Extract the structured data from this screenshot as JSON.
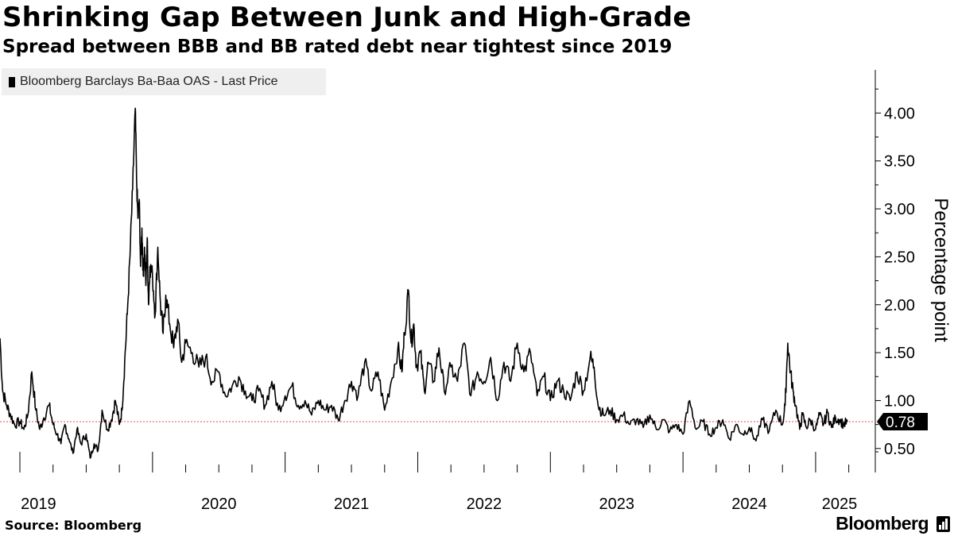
{
  "header": {
    "title": "Shrinking Gap Between Junk and High-Grade",
    "subtitle": "Spread between BBB and BB rated debt near tightest since 2019"
  },
  "legend": {
    "label": "Bloomberg Barclays Ba-Baa OAS - Last Price"
  },
  "footer": {
    "source": "Source: Bloomberg",
    "brand": "Bloomberg"
  },
  "colors": {
    "line": "#000000",
    "reference": "#e05050",
    "badge": "#000000",
    "legend_bg": "#efefef"
  },
  "chart_data": {
    "type": "line",
    "title": "Shrinking Gap Between Junk and High-Grade",
    "subtitle": "Spread between BBB and BB rated debt near tightest since 2019",
    "ylabel": "Percentage point",
    "xlabel": "",
    "xlim": [
      2018.85,
      2025.45
    ],
    "ylim": [
      0.25,
      4.45
    ],
    "y_ticks": [
      0.5,
      1.0,
      1.5,
      2.0,
      2.5,
      3.0,
      3.5,
      4.0
    ],
    "y_tick_labels": [
      "0.50",
      "1.00",
      "1.50",
      "2.00",
      "2.50",
      "3.00",
      "3.50",
      "4.00"
    ],
    "x_ticks": [
      2019.0,
      2020.0,
      2021.0,
      2022.0,
      2023.0,
      2024.0,
      2025.0
    ],
    "x_tick_labels": [
      "2019",
      "2020",
      "2021",
      "2022",
      "2023",
      "2024",
      "2025"
    ],
    "grid": false,
    "legend_position": "top-left",
    "last_price": 0.78,
    "last_price_label": "0.78",
    "series": [
      {
        "name": "Bloomberg Barclays Ba-Baa OAS - Last Price",
        "x": [
          2018.85,
          2018.87,
          2018.9,
          2018.93,
          2018.96,
          2019.0,
          2019.03,
          2019.06,
          2019.09,
          2019.12,
          2019.15,
          2019.18,
          2019.22,
          2019.25,
          2019.28,
          2019.31,
          2019.34,
          2019.37,
          2019.4,
          2019.43,
          2019.46,
          2019.5,
          2019.53,
          2019.56,
          2019.59,
          2019.62,
          2019.66,
          2019.69,
          2019.72,
          2019.75,
          2019.77,
          2019.79,
          2019.81,
          2019.83,
          2019.85,
          2019.87,
          2019.88,
          2019.89,
          2019.9,
          2019.91,
          2019.92,
          2019.93,
          2019.94,
          2019.95,
          2019.96,
          2019.97,
          2019.98,
          2020.0,
          2020.02,
          2020.04,
          2020.06,
          2020.08,
          2020.1,
          2020.13,
          2020.16,
          2020.19,
          2020.22,
          2020.25,
          2020.3,
          2020.35,
          2020.4,
          2020.45,
          2020.5,
          2020.55,
          2020.6,
          2020.65,
          2020.7,
          2020.75,
          2020.8,
          2020.85,
          2020.9,
          2020.95,
          2021.0,
          2021.05,
          2021.1,
          2021.15,
          2021.2,
          2021.25,
          2021.3,
          2021.35,
          2021.4,
          2021.45,
          2021.5,
          2021.55,
          2021.6,
          2021.65,
          2021.7,
          2021.75,
          2021.8,
          2021.85,
          2021.88,
          2021.9,
          2021.93,
          2021.95,
          2021.97,
          2021.99,
          2022.02,
          2022.05,
          2022.08,
          2022.12,
          2022.16,
          2022.2,
          2022.25,
          2022.3,
          2022.35,
          2022.4,
          2022.45,
          2022.5,
          2022.55,
          2022.6,
          2022.65,
          2022.7,
          2022.75,
          2022.8,
          2022.85,
          2022.9,
          2022.95,
          2023.0,
          2023.05,
          2023.1,
          2023.15,
          2023.2,
          2023.25,
          2023.3,
          2023.33,
          2023.36,
          2023.4,
          2023.45,
          2023.5,
          2023.55,
          2023.6,
          2023.65,
          2023.7,
          2023.75,
          2023.8,
          2023.85,
          2023.9,
          2023.95,
          2024.0,
          2024.05,
          2024.1,
          2024.15,
          2024.2,
          2024.25,
          2024.3,
          2024.35,
          2024.4,
          2024.45,
          2024.5,
          2024.55,
          2024.6,
          2024.65,
          2024.7,
          2024.75,
          2024.77,
          2024.79,
          2024.81,
          2024.83,
          2024.85,
          2024.88,
          2024.9,
          2024.93,
          2024.96,
          2025.0,
          2025.03,
          2025.06,
          2025.09,
          2025.12,
          2025.15,
          2025.18,
          2025.21,
          2025.24
        ],
        "y": [
          1.65,
          1.1,
          0.95,
          0.85,
          0.75,
          0.78,
          0.7,
          0.85,
          1.3,
          0.9,
          0.7,
          0.82,
          0.95,
          0.75,
          0.65,
          0.55,
          0.75,
          0.6,
          0.45,
          0.7,
          0.55,
          0.65,
          0.4,
          0.55,
          0.48,
          0.9,
          0.7,
          0.8,
          1.0,
          0.75,
          0.9,
          1.4,
          1.9,
          2.5,
          3.2,
          4.05,
          3.3,
          2.9,
          3.1,
          2.4,
          2.8,
          2.3,
          2.6,
          2.2,
          2.7,
          2.0,
          2.4,
          2.3,
          1.9,
          2.6,
          2.0,
          1.7,
          2.1,
          1.8,
          1.55,
          1.85,
          1.4,
          1.6,
          1.5,
          1.35,
          1.45,
          1.2,
          1.3,
          1.05,
          1.15,
          1.25,
          1.1,
          1.0,
          1.1,
          0.95,
          1.2,
          0.9,
          1.05,
          1.15,
          0.95,
          1.0,
          0.85,
          1.0,
          0.9,
          0.95,
          0.8,
          1.0,
          1.2,
          1.05,
          1.4,
          1.1,
          1.3,
          0.9,
          1.2,
          1.55,
          1.3,
          1.7,
          2.15,
          1.6,
          1.8,
          1.35,
          1.5,
          1.1,
          1.4,
          1.2,
          1.55,
          1.1,
          1.35,
          1.2,
          1.6,
          1.05,
          1.3,
          1.2,
          1.45,
          1.0,
          1.4,
          1.2,
          1.6,
          1.3,
          1.5,
          1.05,
          1.25,
          1.0,
          1.2,
          1.1,
          1.0,
          1.3,
          1.1,
          1.45,
          1.35,
          0.95,
          0.85,
          0.9,
          0.8,
          0.85,
          0.75,
          0.8,
          0.72,
          0.85,
          0.7,
          0.8,
          0.68,
          0.75,
          0.65,
          1.0,
          0.7,
          0.78,
          0.65,
          0.72,
          0.8,
          0.6,
          0.75,
          0.65,
          0.72,
          0.58,
          0.8,
          0.68,
          0.9,
          0.75,
          0.95,
          1.6,
          1.3,
          1.1,
          0.95,
          0.7,
          0.85,
          0.72,
          0.8,
          0.7,
          0.85,
          0.75,
          0.88,
          0.72,
          0.82,
          0.8,
          0.75,
          0.78
        ]
      }
    ]
  }
}
